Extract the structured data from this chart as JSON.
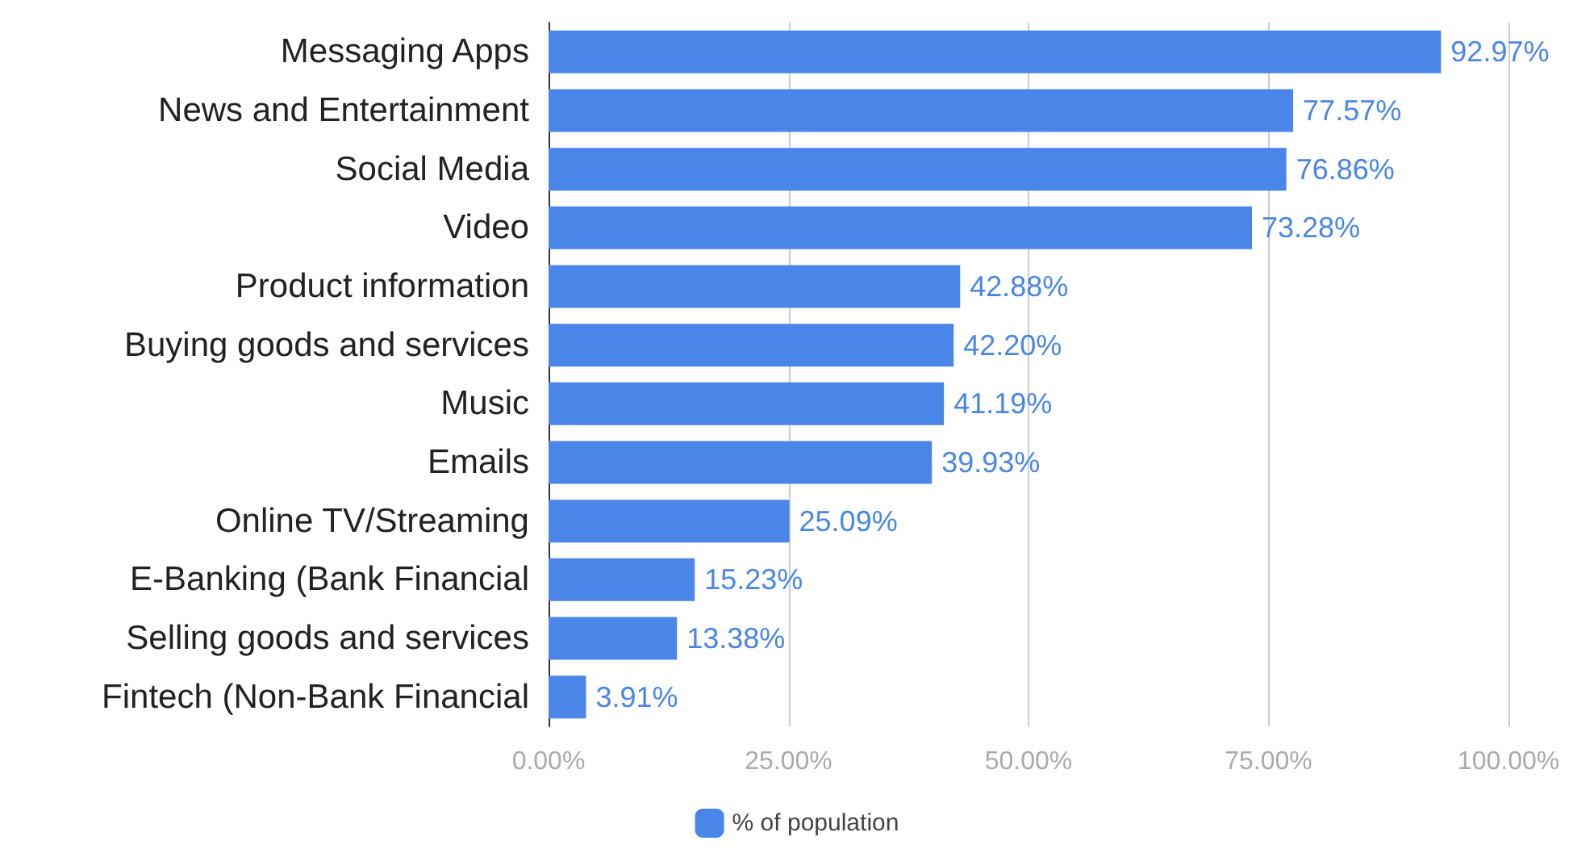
{
  "chart_data": {
    "type": "bar",
    "orientation": "horizontal",
    "categories": [
      "Messaging Apps",
      "News and Entertainment",
      "Social Media",
      "Video",
      "Product information",
      "Buying goods and services",
      "Music",
      "Emails",
      "Online TV/Streaming",
      "E-Banking (Bank Financial",
      "Selling goods and services",
      "Fintech (Non-Bank Financial"
    ],
    "series": [
      {
        "name": "% of population",
        "color": "#4a86e8",
        "values": [
          92.97,
          77.57,
          76.86,
          73.28,
          42.88,
          42.2,
          41.19,
          39.93,
          25.09,
          15.23,
          13.38,
          3.91
        ],
        "value_labels": [
          "92.97%",
          "77.57%",
          "76.86%",
          "73.28%",
          "42.88%",
          "42.20%",
          "41.19%",
          "39.93%",
          "25.09%",
          "15.23%",
          "13.38%",
          "3.91%"
        ]
      }
    ],
    "xlim": [
      0,
      100
    ],
    "xticks": [
      {
        "value": 0,
        "label": "0.00%"
      },
      {
        "value": 25,
        "label": "25.00%"
      },
      {
        "value": 50,
        "label": "50.00%"
      },
      {
        "value": 75,
        "label": "75.00%"
      },
      {
        "value": 100,
        "label": "100.00%"
      }
    ],
    "grid": "x",
    "legend": "bottom"
  }
}
